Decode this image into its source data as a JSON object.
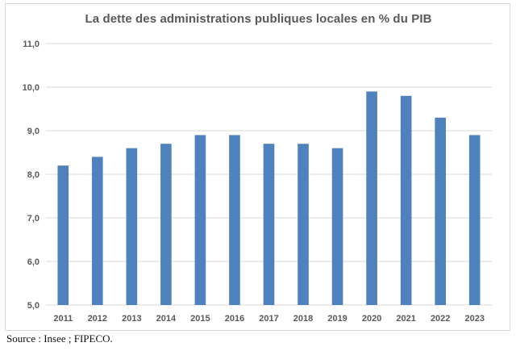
{
  "chart_data": {
    "type": "bar",
    "title": "La dette des administrations publiques locales en % du PIB",
    "xlabel": "",
    "ylabel": "",
    "categories": [
      "2011",
      "2012",
      "2013",
      "2014",
      "2015",
      "2016",
      "2017",
      "2018",
      "2019",
      "2020",
      "2021",
      "2022",
      "2023"
    ],
    "values": [
      8.2,
      8.4,
      8.6,
      8.7,
      8.9,
      8.9,
      8.7,
      8.7,
      8.6,
      9.9,
      9.8,
      9.3,
      8.9
    ],
    "ylim": [
      5.0,
      11.0
    ],
    "yticks": [
      "5,0",
      "6,0",
      "7,0",
      "8,0",
      "9,0",
      "10,0",
      "11,0"
    ],
    "grid": true,
    "bar_color": "#4f81bd",
    "grid_color": "#d9d9d9"
  },
  "source": "Source : Insee ; FIPECO."
}
